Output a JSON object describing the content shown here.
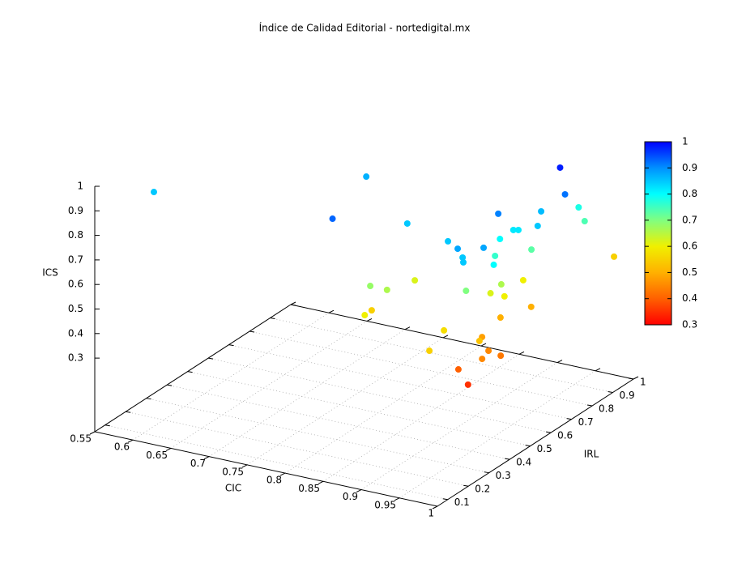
{
  "chart_data": {
    "type": "scatter3d",
    "title": "Índice de Calidad Editorial - nortedigital.mx",
    "xlabel": "CIC",
    "ylabel": "IRL",
    "zlabel": "ICS",
    "x": [
      0.561,
      0.754,
      0.807,
      0.858,
      0.925,
      0.957,
      0.964,
      0.972,
      0.981,
      0.955,
      0.972,
      0.995,
      0.975,
      0.976,
      0.988,
      0.961,
      0.966,
      0.99,
      0.954,
      0.96,
      0.987,
      0.975,
      1.0,
      0.853,
      0.868,
      0.866,
      0.962,
      0.96,
      0.972,
      0.965,
      0.971,
      0.843,
      0.862,
      0.962,
      0.976,
      0.952,
      0.966,
      0.988,
      0.961,
      0.982,
      0.988,
      0.994,
      0.962,
      0.976
    ],
    "y": [
      0.296,
      0.613,
      0.254,
      0.428,
      0.378,
      0.307,
      0.305,
      0.279,
      0.344,
      0.511,
      0.748,
      0.687,
      0.645,
      0.823,
      0.808,
      0.562,
      0.568,
      0.573,
      0.523,
      0.477,
      0.371,
      0.598,
      0.906,
      0.267,
      0.293,
      0.435,
      0.329,
      0.455,
      0.463,
      0.595,
      0.482,
      0.311,
      0.207,
      0.496,
      0.593,
      0.259,
      0.392,
      0.298,
      0.155,
      0.364,
      0.311,
      0.379,
      0.292,
      0.287
    ],
    "z": [
      0.85,
      0.87,
      0.93,
      0.85,
      0.85,
      0.88,
      0.85,
      0.85,
      0.88,
      0.91,
      0.98,
      0.92,
      0.86,
      0.78,
      0.74,
      0.82,
      0.82,
      0.85,
      0.8,
      0.76,
      0.8,
      0.73,
      0.55,
      0.68,
      0.66,
      0.62,
      0.7,
      0.62,
      0.66,
      0.6,
      0.6,
      0.55,
      0.6,
      0.5,
      0.5,
      0.57,
      0.48,
      0.53,
      0.55,
      0.45,
      0.45,
      0.43,
      0.4,
      0.35
    ],
    "xlim": [
      0.55,
      1
    ],
    "xticks": [
      0.55,
      0.6,
      0.65,
      0.7,
      0.75,
      0.8,
      0.85,
      0.9,
      0.95,
      1
    ],
    "ylim": [
      0.05,
      1
    ],
    "yticks": [
      0.1,
      0.2,
      0.3,
      0.4,
      0.5,
      0.6,
      0.7,
      0.8,
      0.9,
      1
    ],
    "zlim": [
      0,
      1
    ],
    "zticks": [
      0.3,
      0.4,
      0.5,
      0.6,
      0.7,
      0.8,
      0.9,
      1
    ],
    "cblim": [
      0.3,
      1
    ],
    "cbticks": [
      0.3,
      0.4,
      0.5,
      0.6,
      0.7,
      0.8,
      0.9,
      1
    ],
    "palette": [
      {
        "value": 0.3,
        "color": "#ff0000"
      },
      {
        "value": 0.4,
        "color": "#ff6000"
      },
      {
        "value": 0.5,
        "color": "#ffb000"
      },
      {
        "value": 0.6,
        "color": "#f0f000"
      },
      {
        "value": 0.7,
        "color": "#80ff80"
      },
      {
        "value": 0.8,
        "color": "#00ffff"
      },
      {
        "value": 0.9,
        "color": "#0090ff"
      },
      {
        "value": 1,
        "color": "#0000ff"
      }
    ],
    "grid": true
  }
}
